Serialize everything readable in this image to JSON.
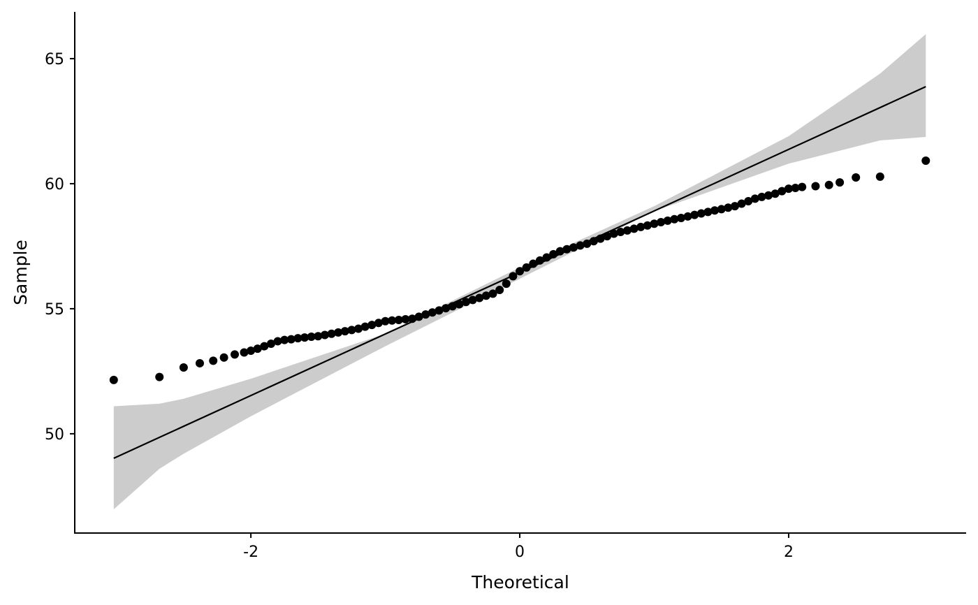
{
  "chart_data": {
    "type": "scatter",
    "subtype": "qq-plot",
    "title": "",
    "xlabel": "Theoretical",
    "ylabel": "Sample",
    "xlim": [
      -3.31,
      3.32
    ],
    "ylim": [
      46.03,
      66.87
    ],
    "xticks": [
      -2,
      0,
      2
    ],
    "xtick_labels": [
      "-2",
      "0",
      "2"
    ],
    "yticks": [
      50,
      55,
      60,
      65
    ],
    "ytick_labels": [
      "50",
      "55",
      "60",
      "65"
    ],
    "grid": false,
    "legend": "none",
    "colors": {
      "points": "#000000",
      "reference_line": "#000000",
      "confidence_band": "#cccccc"
    },
    "reference_line": {
      "x": [
        -3.02,
        3.02
      ],
      "y": [
        49.02,
        63.88
      ]
    },
    "confidence_band": {
      "x": [
        -3.02,
        -2.68,
        -2.5,
        -2.0,
        -1.0,
        0.0,
        1.0,
        2.0,
        2.68,
        3.02
      ],
      "lower": [
        46.98,
        48.6,
        49.2,
        50.7,
        53.5,
        56.2,
        58.9,
        60.8,
        61.73,
        61.87
      ],
      "upper": [
        51.1,
        51.2,
        51.4,
        52.2,
        54.0,
        56.65,
        59.1,
        61.9,
        64.4,
        65.98
      ]
    },
    "points": [
      [
        -3.02,
        52.15
      ],
      [
        -2.68,
        52.27
      ],
      [
        -2.5,
        52.65
      ],
      [
        -2.38,
        52.82
      ],
      [
        -2.28,
        52.92
      ],
      [
        -2.2,
        53.05
      ],
      [
        -2.12,
        53.17
      ],
      [
        -2.05,
        53.25
      ],
      [
        -2.0,
        53.32
      ],
      [
        -1.95,
        53.4
      ],
      [
        -1.9,
        53.5
      ],
      [
        -1.85,
        53.6
      ],
      [
        -1.8,
        53.7
      ],
      [
        -1.75,
        53.75
      ],
      [
        -1.7,
        53.78
      ],
      [
        -1.65,
        53.82
      ],
      [
        -1.6,
        53.85
      ],
      [
        -1.55,
        53.88
      ],
      [
        -1.5,
        53.9
      ],
      [
        -1.45,
        53.95
      ],
      [
        -1.4,
        54.0
      ],
      [
        -1.35,
        54.05
      ],
      [
        -1.3,
        54.1
      ],
      [
        -1.25,
        54.15
      ],
      [
        -1.2,
        54.2
      ],
      [
        -1.15,
        54.28
      ],
      [
        -1.1,
        54.35
      ],
      [
        -1.05,
        54.43
      ],
      [
        -1.0,
        54.5
      ],
      [
        -0.95,
        54.53
      ],
      [
        -0.9,
        54.55
      ],
      [
        -0.85,
        54.58
      ],
      [
        -0.8,
        54.6
      ],
      [
        -0.75,
        54.68
      ],
      [
        -0.7,
        54.77
      ],
      [
        -0.65,
        54.85
      ],
      [
        -0.6,
        54.93
      ],
      [
        -0.55,
        55.02
      ],
      [
        -0.5,
        55.1
      ],
      [
        -0.45,
        55.18
      ],
      [
        -0.4,
        55.27
      ],
      [
        -0.35,
        55.35
      ],
      [
        -0.3,
        55.43
      ],
      [
        -0.25,
        55.52
      ],
      [
        -0.2,
        55.6
      ],
      [
        -0.15,
        55.75
      ],
      [
        -0.1,
        56.0
      ],
      [
        -0.05,
        56.3
      ],
      [
        0.0,
        56.5
      ],
      [
        0.05,
        56.65
      ],
      [
        0.1,
        56.8
      ],
      [
        0.15,
        56.93
      ],
      [
        0.2,
        57.05
      ],
      [
        0.25,
        57.18
      ],
      [
        0.3,
        57.3
      ],
      [
        0.35,
        57.38
      ],
      [
        0.4,
        57.45
      ],
      [
        0.45,
        57.53
      ],
      [
        0.5,
        57.6
      ],
      [
        0.55,
        57.7
      ],
      [
        0.6,
        57.8
      ],
      [
        0.65,
        57.9
      ],
      [
        0.7,
        58.0
      ],
      [
        0.75,
        58.07
      ],
      [
        0.8,
        58.13
      ],
      [
        0.85,
        58.2
      ],
      [
        0.9,
        58.27
      ],
      [
        0.95,
        58.33
      ],
      [
        1.0,
        58.4
      ],
      [
        1.05,
        58.46
      ],
      [
        1.1,
        58.52
      ],
      [
        1.15,
        58.58
      ],
      [
        1.2,
        58.63
      ],
      [
        1.25,
        58.69
      ],
      [
        1.3,
        58.75
      ],
      [
        1.35,
        58.81
      ],
      [
        1.4,
        58.87
      ],
      [
        1.45,
        58.93
      ],
      [
        1.5,
        58.98
      ],
      [
        1.55,
        59.04
      ],
      [
        1.6,
        59.1
      ],
      [
        1.65,
        59.2
      ],
      [
        1.7,
        59.3
      ],
      [
        1.75,
        59.4
      ],
      [
        1.8,
        59.47
      ],
      [
        1.85,
        59.53
      ],
      [
        1.9,
        59.6
      ],
      [
        1.95,
        59.7
      ],
      [
        2.0,
        59.8
      ],
      [
        2.05,
        59.83
      ],
      [
        2.1,
        59.87
      ],
      [
        2.2,
        59.9
      ],
      [
        2.3,
        59.95
      ],
      [
        2.38,
        60.05
      ],
      [
        2.5,
        60.25
      ],
      [
        2.68,
        60.28
      ],
      [
        3.02,
        60.92
      ]
    ]
  }
}
